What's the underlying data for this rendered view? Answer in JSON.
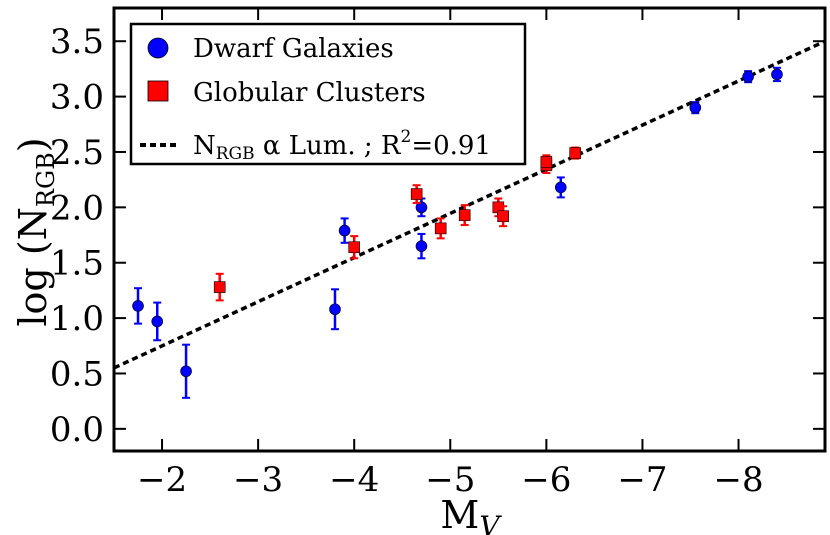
{
  "chart_data": {
    "type": "scatter",
    "xlabel_main": "M",
    "xlabel_sub": "V",
    "ylabel_main": "log (N",
    "ylabel_sub": "RGB",
    "ylabel_end": ")",
    "xlim": [
      -1.5,
      -8.9
    ],
    "ylim": [
      -0.2,
      3.8
    ],
    "x_ticks": [
      -2,
      -3,
      -4,
      -5,
      -6,
      -7,
      -8
    ],
    "x_tick_labels": [
      "−2",
      "−3",
      "−4",
      "−5",
      "−6",
      "−7",
      "−8"
    ],
    "y_ticks": [
      0.0,
      0.5,
      1.0,
      1.5,
      2.0,
      2.5,
      3.0,
      3.5
    ],
    "y_tick_labels": [
      "0.0",
      "0.5",
      "1.0",
      "1.5",
      "2.0",
      "2.5",
      "3.0",
      "3.5"
    ],
    "legend_position": "top-left",
    "series": [
      {
        "name": "Dwarf Galaxies",
        "marker": "circle",
        "color": "#0000ff",
        "points": [
          {
            "x": -1.75,
            "y": 1.11,
            "err": 0.16
          },
          {
            "x": -1.95,
            "y": 0.97,
            "err": 0.17
          },
          {
            "x": -2.25,
            "y": 0.52,
            "err": 0.24
          },
          {
            "x": -3.8,
            "y": 1.08,
            "err": 0.18
          },
          {
            "x": -3.9,
            "y": 1.79,
            "err": 0.11
          },
          {
            "x": -4.7,
            "y": 1.65,
            "err": 0.11
          },
          {
            "x": -4.7,
            "y": 2.0,
            "err": 0.08
          },
          {
            "x": -6.15,
            "y": 2.18,
            "err": 0.09
          },
          {
            "x": -7.55,
            "y": 2.9,
            "err": 0.05
          },
          {
            "x": -8.1,
            "y": 3.18,
            "err": 0.05
          },
          {
            "x": -8.4,
            "y": 3.2,
            "err": 0.06
          }
        ]
      },
      {
        "name": "Globular Clusters",
        "marker": "square",
        "color": "#ff0000",
        "points": [
          {
            "x": -2.6,
            "y": 1.28,
            "err": 0.12
          },
          {
            "x": -4.0,
            "y": 1.64,
            "err": 0.1
          },
          {
            "x": -4.65,
            "y": 2.12,
            "err": 0.08
          },
          {
            "x": -4.9,
            "y": 1.81,
            "err": 0.09
          },
          {
            "x": -5.15,
            "y": 1.93,
            "err": 0.09
          },
          {
            "x": -5.5,
            "y": 2.0,
            "err": 0.08
          },
          {
            "x": -5.55,
            "y": 1.92,
            "err": 0.09
          },
          {
            "x": -6.0,
            "y": 2.38,
            "err": 0.07
          },
          {
            "x": -6.0,
            "y": 2.41,
            "err": 0.06
          },
          {
            "x": -6.3,
            "y": 2.49,
            "err": 0.05
          }
        ]
      }
    ],
    "fit_line": {
      "label_main": "N",
      "label_sub": "RGB",
      "label_rest": " α Lum. ; R",
      "label_sup": "2",
      "label_end": "=0.91",
      "style": "dotted",
      "color": "#000000",
      "x": [
        -1.5,
        -8.9
      ],
      "y": [
        0.55,
        3.5
      ]
    }
  }
}
